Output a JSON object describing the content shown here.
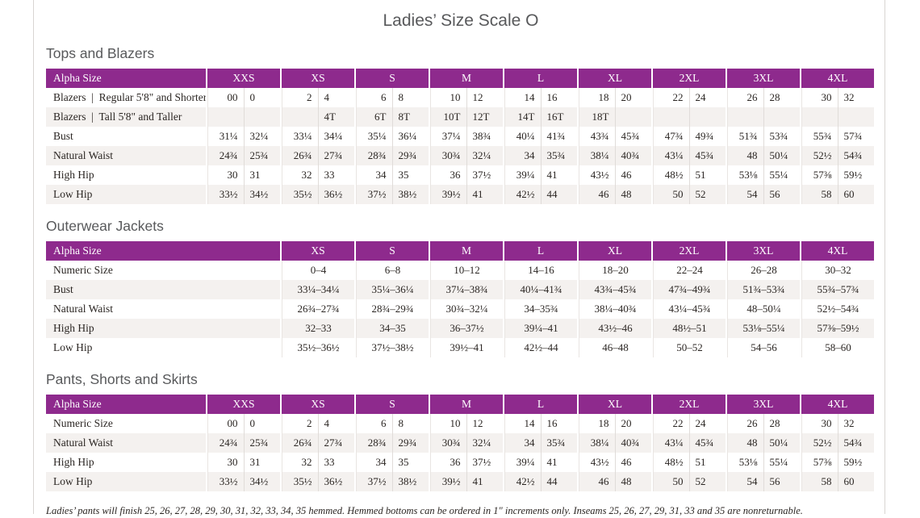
{
  "page": {
    "title": "Ladies’ Size Scale O",
    "footnote": "Ladies’ pants will finish 25, 26, 27, 28, 29, 30, 31, 32, 33, 34, 35 hemmed. Hemmed bottoms can be ordered in 1\" increments only. Inseams 25, 26, 27, 29, 31, 33 and 35 are nonreturnable."
  },
  "colors": {
    "header_purple": "#8e2a8d",
    "stripe_gray": "#f4f1ef",
    "heading_gray": "#58595b"
  },
  "tables": [
    {
      "section": "Tops and Blazers",
      "header_label": "Alpha Size",
      "split_columns": true,
      "columns": [
        "XXS",
        "XS",
        "S",
        "M",
        "L",
        "XL",
        "2XL",
        "3XL",
        "4XL"
      ],
      "rows": [
        {
          "label": "Blazers  |  Regular 5'8\" and Shorter",
          "values": [
            [
              "00",
              "0"
            ],
            [
              "2",
              "4"
            ],
            [
              "6",
              "8"
            ],
            [
              "10",
              "12"
            ],
            [
              "14",
              "16"
            ],
            [
              "18",
              "20"
            ],
            [
              "22",
              "24"
            ],
            [
              "26",
              "28"
            ],
            [
              "30",
              "32"
            ]
          ]
        },
        {
          "label": "Blazers  |  Tall 5'8\" and Taller",
          "values": [
            [
              "",
              ""
            ],
            [
              "",
              "4T"
            ],
            [
              "6T",
              "8T"
            ],
            [
              "10T",
              "12T"
            ],
            [
              "14T",
              "16T"
            ],
            [
              "18T",
              ""
            ],
            [
              "",
              ""
            ],
            [
              "",
              ""
            ],
            [
              "",
              ""
            ]
          ]
        },
        {
          "label": "Bust",
          "values": [
            [
              "31¼",
              "32¼"
            ],
            [
              "33¼",
              "34¼"
            ],
            [
              "35¼",
              "36¼"
            ],
            [
              "37¼",
              "38¾"
            ],
            [
              "40¼",
              "41¾"
            ],
            [
              "43¾",
              "45¾"
            ],
            [
              "47¾",
              "49¾"
            ],
            [
              "51¾",
              "53¾"
            ],
            [
              "55¾",
              "57¾"
            ]
          ]
        },
        {
          "label": "Natural Waist",
          "values": [
            [
              "24¾",
              "25¾"
            ],
            [
              "26¾",
              "27¾"
            ],
            [
              "28¾",
              "29¾"
            ],
            [
              "30¾",
              "32¼"
            ],
            [
              "34",
              "35¾"
            ],
            [
              "38¼",
              "40¾"
            ],
            [
              "43¼",
              "45¾"
            ],
            [
              "48",
              "50¼"
            ],
            [
              "52½",
              "54¾"
            ]
          ]
        },
        {
          "label": "High Hip",
          "values": [
            [
              "30",
              "31"
            ],
            [
              "32",
              "33"
            ],
            [
              "34",
              "35"
            ],
            [
              "36",
              "37½"
            ],
            [
              "39¼",
              "41"
            ],
            [
              "43½",
              "46"
            ],
            [
              "48½",
              "51"
            ],
            [
              "53⅛",
              "55¼"
            ],
            [
              "57⅜",
              "59½"
            ]
          ]
        },
        {
          "label": "Low Hip",
          "values": [
            [
              "33½",
              "34½"
            ],
            [
              "35½",
              "36½"
            ],
            [
              "37½",
              "38½"
            ],
            [
              "39½",
              "41"
            ],
            [
              "42½",
              "44"
            ],
            [
              "46",
              "48"
            ],
            [
              "50",
              "52"
            ],
            [
              "54",
              "56"
            ],
            [
              "58",
              "60"
            ]
          ]
        }
      ]
    },
    {
      "section": "Outerwear Jackets",
      "header_label": "Alpha Size",
      "split_columns": false,
      "columns": [
        "XS",
        "S",
        "M",
        "L",
        "XL",
        "2XL",
        "3XL",
        "4XL"
      ],
      "rows": [
        {
          "label": "Numeric Size",
          "values": [
            "0–4",
            "6–8",
            "10–12",
            "14–16",
            "18–20",
            "22–24",
            "26–28",
            "30–32"
          ]
        },
        {
          "label": "Bust",
          "values": [
            "33¼–34¼",
            "35¼–36¼",
            "37¼–38¾",
            "40¼–41¾",
            "43¾–45¾",
            "47¾–49¾",
            "51¾–53¾",
            "55¾–57¾"
          ]
        },
        {
          "label": "Natural Waist",
          "values": [
            "26¾–27¾",
            "28¾–29¾",
            "30¾–32¼",
            "34–35¾",
            "38¼–40¾",
            "43¼–45¾",
            "48–50¼",
            "52½–54¾"
          ]
        },
        {
          "label": "High Hip",
          "values": [
            "32–33",
            "34–35",
            "36–37½",
            "39¼–41",
            "43½–46",
            "48½–51",
            "53⅛–55¼",
            "57⅜–59½"
          ]
        },
        {
          "label": "Low Hip",
          "values": [
            "35½–36½",
            "37½–38½",
            "39½–41",
            "42½–44",
            "46–48",
            "50–52",
            "54–56",
            "58–60"
          ]
        }
      ]
    },
    {
      "section": "Pants, Shorts and Skirts",
      "header_label": "Alpha Size",
      "split_columns": true,
      "columns": [
        "XXS",
        "XS",
        "S",
        "M",
        "L",
        "XL",
        "2XL",
        "3XL",
        "4XL"
      ],
      "rows": [
        {
          "label": "Numeric Size",
          "values": [
            [
              "00",
              "0"
            ],
            [
              "2",
              "4"
            ],
            [
              "6",
              "8"
            ],
            [
              "10",
              "12"
            ],
            [
              "14",
              "16"
            ],
            [
              "18",
              "20"
            ],
            [
              "22",
              "24"
            ],
            [
              "26",
              "28"
            ],
            [
              "30",
              "32"
            ]
          ]
        },
        {
          "label": "Natural Waist",
          "values": [
            [
              "24¾",
              "25¾"
            ],
            [
              "26¾",
              "27¾"
            ],
            [
              "28¾",
              "29¾"
            ],
            [
              "30¾",
              "32¼"
            ],
            [
              "34",
              "35¾"
            ],
            [
              "38¼",
              "40¾"
            ],
            [
              "43¼",
              "45¾"
            ],
            [
              "48",
              "50¼"
            ],
            [
              "52½",
              "54¾"
            ]
          ]
        },
        {
          "label": "High Hip",
          "values": [
            [
              "30",
              "31"
            ],
            [
              "32",
              "33"
            ],
            [
              "34",
              "35"
            ],
            [
              "36",
              "37½"
            ],
            [
              "39¼",
              "41"
            ],
            [
              "43½",
              "46"
            ],
            [
              "48½",
              "51"
            ],
            [
              "53⅛",
              "55¼"
            ],
            [
              "57⅜",
              "59½"
            ]
          ]
        },
        {
          "label": "Low Hip",
          "values": [
            [
              "33½",
              "34½"
            ],
            [
              "35½",
              "36½"
            ],
            [
              "37½",
              "38½"
            ],
            [
              "39½",
              "41"
            ],
            [
              "42½",
              "44"
            ],
            [
              "46",
              "48"
            ],
            [
              "50",
              "52"
            ],
            [
              "54",
              "56"
            ],
            [
              "58",
              "60"
            ]
          ]
        }
      ]
    }
  ]
}
